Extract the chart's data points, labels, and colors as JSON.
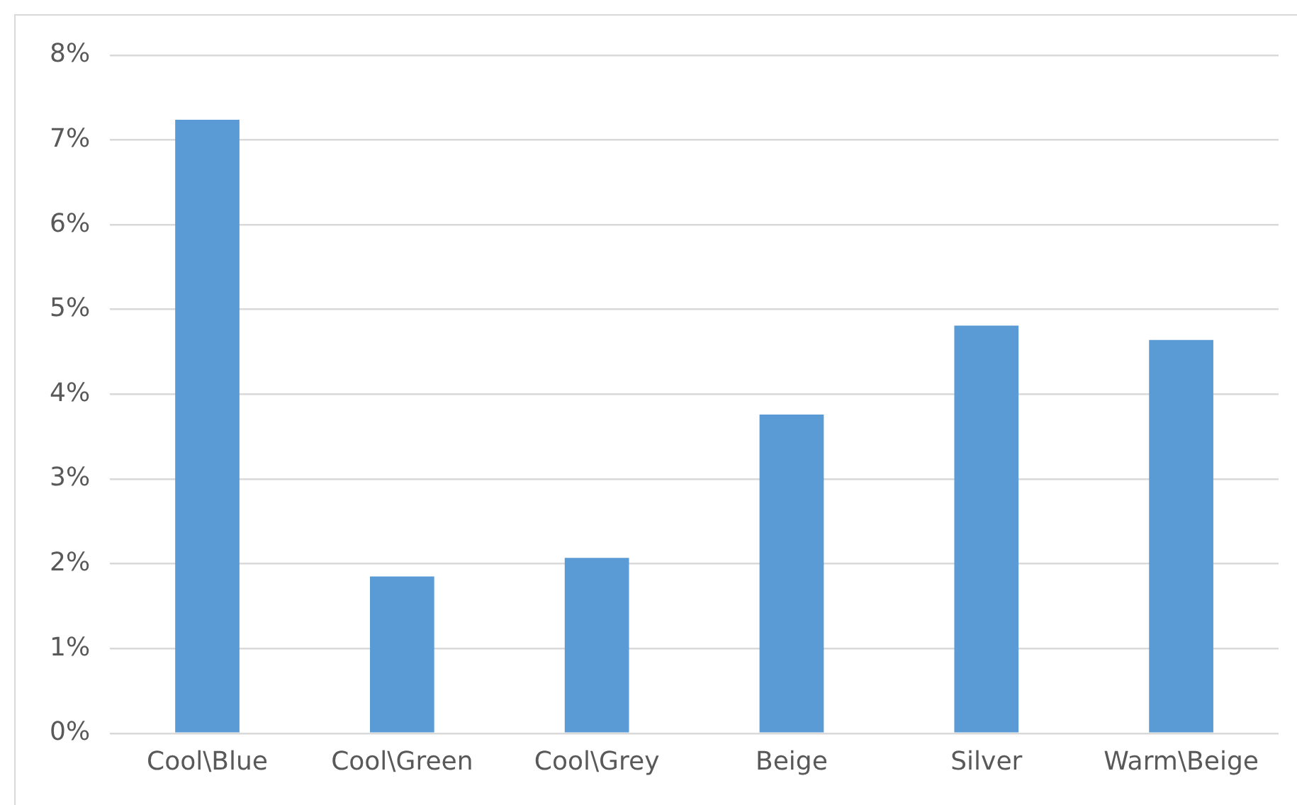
{
  "chart_data": {
    "type": "bar",
    "categories": [
      "Cool\\Blue",
      "Cool\\Green",
      "Cool\\Grey",
      "Beige",
      "Silver",
      "Warm\\Beige"
    ],
    "values": [
      7.24,
      1.85,
      2.07,
      3.76,
      4.81,
      4.64
    ],
    "color": "#5b9bd5",
    "ylim": [
      0,
      8
    ],
    "yticks": [
      {
        "value": 0,
        "label": "0%"
      },
      {
        "value": 1,
        "label": "1%"
      },
      {
        "value": 2,
        "label": "2%"
      },
      {
        "value": 3,
        "label": "3%"
      },
      {
        "value": 4,
        "label": "4%"
      },
      {
        "value": 5,
        "label": "5%"
      },
      {
        "value": 6,
        "label": "6%"
      },
      {
        "value": 7,
        "label": "7%"
      },
      {
        "value": 8,
        "label": "8%"
      }
    ],
    "grid": "y",
    "legend": false
  }
}
